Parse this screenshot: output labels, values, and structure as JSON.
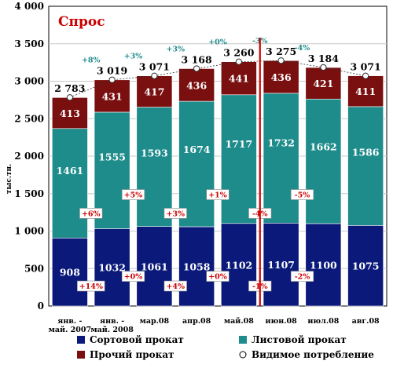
{
  "chart_data": {
    "type": "bar",
    "title": "Спрос",
    "ylabel": "тыс.тн.",
    "ylim": [
      0,
      4000
    ],
    "yticks": [
      "0",
      "500",
      "1 000",
      "1 500",
      "2 000",
      "2 500",
      "3 000",
      "3 500",
      "4 000"
    ],
    "grid": true,
    "categories": [
      "янв. - май. 2007",
      "янв. - май. 2008",
      "мар.08",
      "апр.08",
      "май.08",
      "июн.08",
      "июл.08",
      "авг.08"
    ],
    "series": [
      {
        "name": "Сортовой прокат",
        "color": "#0b1a7a",
        "values": [
          908,
          1032,
          1061,
          1058,
          1102,
          1107,
          1100,
          1075
        ]
      },
      {
        "name": "Листовой прокат",
        "color": "#1f8c8c",
        "values": [
          1461,
          1555,
          1593,
          1674,
          1717,
          1732,
          1662,
          1586
        ]
      },
      {
        "name": "Прочий прокат",
        "color": "#7a0f0f",
        "values": [
          413,
          431,
          417,
          436,
          441,
          436,
          421,
          411
        ]
      }
    ],
    "totals_series_name": "Видимое потребление",
    "totals": [
      2783,
      3019,
      3071,
      3168,
      3260,
      3275,
      3184,
      3071
    ],
    "total_labels": [
      "2 783",
      "3 019",
      "3 071",
      "3 168",
      "3 260",
      "3 275",
      "3 184",
      "3 071"
    ],
    "total_changes": [
      "",
      "+8%",
      "+3%",
      "+3%",
      "+0%",
      "-3%",
      "-4%",
      ""
    ],
    "listovoy_changes": [
      "",
      "+6%",
      "+5%",
      "+3%",
      "+1%",
      "-4%",
      "-5%",
      ""
    ],
    "sortovoy_changes": [
      "",
      "+14%",
      "+0%",
      "+4%",
      "+0%",
      "-1%",
      "-2%",
      ""
    ],
    "divider_after_category": "май.08",
    "legend_placement": "bottom"
  }
}
